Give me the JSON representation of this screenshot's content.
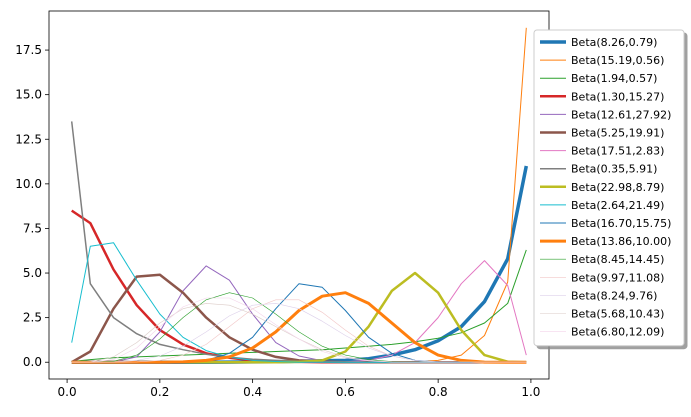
{
  "chart_data": {
    "type": "line",
    "x": [
      0.01,
      0.05,
      0.1,
      0.15,
      0.2,
      0.25,
      0.3,
      0.35,
      0.4,
      0.45,
      0.5,
      0.55,
      0.6,
      0.65,
      0.7,
      0.75,
      0.8,
      0.85,
      0.9,
      0.95,
      0.99
    ],
    "xlim": [
      -0.039,
      1.039
    ],
    "xticks": [
      {
        "value": 0,
        "label": "0.0"
      },
      {
        "value": 0.2,
        "label": "0.2"
      },
      {
        "value": 0.4,
        "label": "0.4"
      },
      {
        "value": 0.6,
        "label": "0.6"
      },
      {
        "value": 0.8,
        "label": "0.8"
      },
      {
        "value": 1,
        "label": "1.0"
      }
    ],
    "ylim": [
      -0.94,
      19.69
    ],
    "yticks": [
      {
        "value": 0,
        "label": "0.0"
      },
      {
        "value": 2.5,
        "label": "2.5"
      },
      {
        "value": 5,
        "label": "5.0"
      },
      {
        "value": 7.5,
        "label": "7.5"
      },
      {
        "value": 10,
        "label": "10.0"
      },
      {
        "value": 12.5,
        "label": "12.5"
      },
      {
        "value": 15,
        "label": "15.0"
      },
      {
        "value": 17.5,
        "label": "17.5"
      }
    ],
    "legend": "upper right",
    "series": [
      {
        "name": "Beta(8.26,0.79)",
        "color": "#1f77b4",
        "linewidth": 3.5,
        "values": [
          0,
          0,
          0,
          0,
          0,
          0,
          0,
          0.01,
          0.02,
          0.03,
          0.05,
          0.08,
          0.1,
          0.2,
          0.4,
          0.7,
          1.2,
          2.0,
          3.4,
          5.8,
          11.0
        ]
      },
      {
        "name": "Beta(15.19,0.56)",
        "color": "#ff7f0e",
        "linewidth": 1,
        "values": [
          0,
          0,
          0,
          0,
          0,
          0,
          0,
          0,
          0,
          0,
          0,
          0,
          0,
          0,
          0.01,
          0.03,
          0.1,
          0.4,
          1.5,
          4.5,
          18.75
        ]
      },
      {
        "name": "Beta(1.94,0.57)",
        "color": "#2ca02c",
        "linewidth": 1,
        "values": [
          0.04,
          0.15,
          0.25,
          0.3,
          0.35,
          0.4,
          0.45,
          0.5,
          0.55,
          0.6,
          0.65,
          0.7,
          0.8,
          0.9,
          1.0,
          1.15,
          1.35,
          1.65,
          2.2,
          3.3,
          6.3
        ]
      },
      {
        "name": "Beta(1.30,15.27)",
        "color": "#d62728",
        "linewidth": 2.5,
        "values": [
          8.5,
          7.8,
          5.2,
          3.2,
          1.8,
          1.0,
          0.5,
          0.25,
          0.1,
          0.05,
          0.02,
          0,
          0,
          0,
          0,
          0,
          0,
          0,
          0,
          0,
          0
        ]
      },
      {
        "name": "Beta(12.61,27.92)",
        "color": "#9467bd",
        "linewidth": 1,
        "values": [
          0,
          0,
          0.02,
          0.3,
          1.7,
          4.0,
          5.4,
          4.6,
          2.7,
          1.1,
          0.35,
          0.08,
          0.01,
          0,
          0,
          0,
          0,
          0,
          0,
          0,
          0
        ]
      },
      {
        "name": "Beta(5.25,19.91)",
        "color": "#8c564b",
        "linewidth": 2.5,
        "values": [
          0,
          0.6,
          3.0,
          4.8,
          4.9,
          3.9,
          2.5,
          1.4,
          0.7,
          0.3,
          0.1,
          0.04,
          0,
          0,
          0,
          0,
          0,
          0,
          0,
          0,
          0
        ]
      },
      {
        "name": "Beta(17.51,2.83)",
        "color": "#e377c2",
        "linewidth": 1,
        "values": [
          0,
          0,
          0,
          0,
          0,
          0,
          0,
          0,
          0,
          0,
          0,
          0.01,
          0.03,
          0.1,
          0.4,
          1.1,
          2.5,
          4.4,
          5.7,
          4.3,
          0.4
        ]
      },
      {
        "name": "Beta(0.35,5.91)",
        "color": "#7f7f7f",
        "linewidth": 1.5,
        "values": [
          13.5,
          4.4,
          2.5,
          1.6,
          1.0,
          0.7,
          0.45,
          0.28,
          0.17,
          0.1,
          0.06,
          0.03,
          0.02,
          0,
          0,
          0,
          0,
          0,
          0,
          0,
          0
        ]
      },
      {
        "name": "Beta(22.98,8.79)",
        "color": "#bcbd22",
        "linewidth": 2.5,
        "values": [
          0,
          0,
          0,
          0,
          0,
          0,
          0,
          0,
          0,
          0,
          0.02,
          0.1,
          0.6,
          2.0,
          4.0,
          5.0,
          3.9,
          1.8,
          0.4,
          0.03,
          0
        ]
      },
      {
        "name": "Beta(2.64,21.49)",
        "color": "#17becf",
        "linewidth": 1,
        "values": [
          1.1,
          6.5,
          6.7,
          4.6,
          2.7,
          1.4,
          0.65,
          0.28,
          0.1,
          0.04,
          0,
          0,
          0,
          0,
          0,
          0,
          0,
          0,
          0,
          0,
          0
        ]
      },
      {
        "name": "Beta(16.70,15.75)",
        "color": "#1f77b4",
        "linewidth": 1,
        "values": [
          0,
          0,
          0,
          0,
          0,
          0.02,
          0.1,
          0.5,
          1.4,
          3.0,
          4.4,
          4.2,
          2.9,
          1.4,
          0.5,
          0.1,
          0.02,
          0,
          0,
          0,
          0
        ]
      },
      {
        "name": "Beta(13.86,10.00)",
        "color": "#ff7f0e",
        "linewidth": 3,
        "values": [
          0,
          0,
          0,
          0,
          0,
          0.02,
          0.1,
          0.3,
          0.8,
          1.7,
          2.9,
          3.7,
          3.9,
          3.3,
          2.2,
          1.1,
          0.4,
          0.1,
          0.01,
          0,
          0
        ]
      },
      {
        "name": "Beta(8.45,14.45)",
        "color": "#2ca02c",
        "linewidth": 0.6,
        "values": [
          0,
          0,
          0.05,
          0.4,
          1.3,
          2.5,
          3.5,
          3.9,
          3.6,
          2.7,
          1.7,
          0.9,
          0.4,
          0.15,
          0.04,
          0,
          0,
          0,
          0,
          0,
          0
        ]
      },
      {
        "name": "Beta(9.97,11.08)",
        "color": "#f2c7c7",
        "linewidth": 0.6,
        "values": [
          0,
          0,
          0,
          0.02,
          0.1,
          0.4,
          1.0,
          2.0,
          3.0,
          3.5,
          3.5,
          2.8,
          1.8,
          0.9,
          0.35,
          0.1,
          0.02,
          0,
          0,
          0,
          0
        ]
      },
      {
        "name": "Beta(8.24,9.76)",
        "color": "#ddd0ea",
        "linewidth": 0.6,
        "values": [
          0,
          0,
          0.02,
          0.1,
          0.35,
          0.9,
          1.7,
          2.6,
          3.2,
          3.3,
          3.0,
          2.3,
          1.5,
          0.8,
          0.35,
          0.1,
          0.02,
          0,
          0,
          0,
          0
        ]
      },
      {
        "name": "Beta(5.68,10.43)",
        "color": "#dcccc8",
        "linewidth": 0.6,
        "values": [
          0,
          0.02,
          0.3,
          1.1,
          2.2,
          3.0,
          3.3,
          3.2,
          2.7,
          2.0,
          1.3,
          0.7,
          0.3,
          0.1,
          0.02,
          0,
          0,
          0,
          0,
          0,
          0
        ]
      },
      {
        "name": "Beta(6.80,12.09)",
        "color": "#f3d5ea",
        "linewidth": 0.6,
        "values": [
          0,
          0,
          0.15,
          0.8,
          2.0,
          3.1,
          3.6,
          3.6,
          3.0,
          2.1,
          1.3,
          0.6,
          0.25,
          0.08,
          0.01,
          0,
          0,
          0,
          0,
          0,
          0
        ]
      }
    ]
  }
}
